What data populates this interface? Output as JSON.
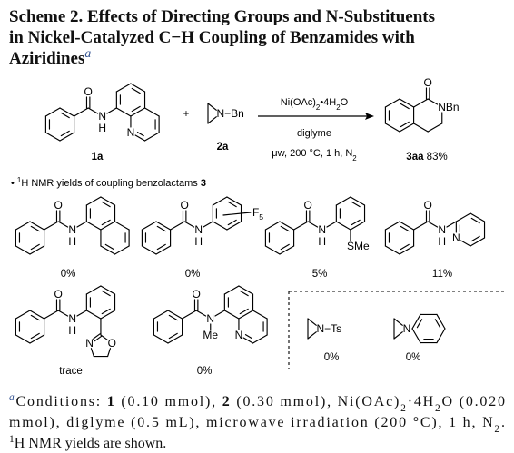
{
  "title": {
    "lines": [
      "Scheme 2. Effects of Directing Groups and N-Substituents",
      "in Nickel-Catalyzed C−H Coupling of Benzamides with",
      "Aziridines"
    ],
    "note_mark": "a"
  },
  "reaction": {
    "substrate": {
      "atoms": [
        "O",
        "N",
        "H",
        "N"
      ],
      "label": "1a"
    },
    "plus": "+",
    "reagent": {
      "atoms": [
        "N−Bn"
      ],
      "label": "2a"
    },
    "conditions": {
      "catalyst": [
        {
          "text": "Ni(OAc)"
        },
        {
          "text": "2",
          "style": "sub"
        },
        {
          "text": "•4H"
        },
        {
          "text": "2",
          "style": "sub"
        },
        {
          "text": "O"
        }
      ],
      "solvent": "diglyme",
      "settings": [
        {
          "text": "μw, 200 °C, 1 h, N"
        },
        {
          "text": "2",
          "style": "sub"
        }
      ]
    },
    "product": {
      "atoms": [
        "O",
        "NBn"
      ],
      "label": [
        {
          "text": "3aa",
          "style": "bold"
        },
        {
          "text": " 83%"
        }
      ]
    }
  },
  "note": [
    {
      "text": "• "
    },
    {
      "text": "1",
      "style": "sup"
    },
    {
      "text": "H NMR yields of coupling benzolactams "
    },
    {
      "text": "3",
      "style": "bold"
    }
  ],
  "examples": [
    {
      "atoms": [
        "O",
        "N",
        "H"
      ],
      "yield": "0%"
    },
    {
      "atoms": [
        "O",
        "N",
        "H",
        [
          {
            "text": "F"
          },
          {
            "text": "5",
            "style": "sub"
          }
        ]
      ],
      "yield": "0%"
    },
    {
      "atoms": [
        "O",
        "N",
        "H",
        "SMe"
      ],
      "yield": "5%"
    },
    {
      "atoms": [
        "O",
        "N",
        "H",
        "N"
      ],
      "yield": "11%"
    },
    {
      "atoms": [
        "O",
        "N",
        "H",
        "N",
        "O"
      ],
      "yield": "trace"
    },
    {
      "atoms": [
        "O",
        "N",
        "Me",
        "N"
      ],
      "yield": "0%"
    },
    {
      "atoms": [
        "N−Ts"
      ],
      "yield": "0%"
    },
    {
      "atoms": [
        "N"
      ],
      "yield": "0%"
    }
  ],
  "footnote": {
    "lines": [
      [
        {
          "text": "a",
          "style": "sup italic"
        },
        {
          "text": "Conditions: "
        },
        {
          "text": "1",
          "style": "bold"
        },
        {
          "text": " (0.10 mmol), "
        },
        {
          "text": "2",
          "style": "bold"
        },
        {
          "text": " (0.30 mmol), Ni(OAc)"
        },
        {
          "text": "2",
          "style": "sub"
        },
        {
          "text": "·4H"
        },
        {
          "text": "2",
          "style": "sub"
        },
        {
          "text": "O (0.020"
        }
      ],
      [
        {
          "text": "mmol), diglyme (0.5 mL), microwave irradiation (200 °C), 1 h, N"
        },
        {
          "text": "2",
          "style": "sub"
        },
        {
          "text": "."
        }
      ],
      [
        {
          "text": "1",
          "style": "sup"
        },
        {
          "text": "H NMR yields are shown."
        }
      ]
    ]
  }
}
